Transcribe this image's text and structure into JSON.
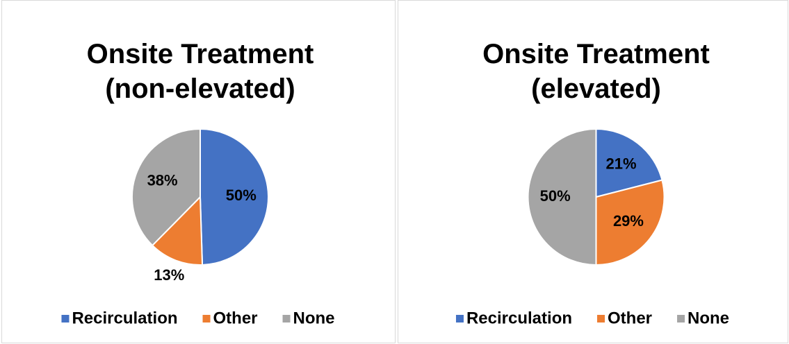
{
  "chart_data": [
    {
      "type": "pie",
      "title": "Onsite Treatment (non-elevated)",
      "categories": [
        "Recirculation",
        "Other",
        "None"
      ],
      "values": [
        50,
        13,
        38
      ],
      "value_labels": [
        "50%",
        "13%",
        "38%"
      ],
      "colors": [
        "#4472c4",
        "#ed7d31",
        "#a5a5a5"
      ],
      "legend": "bottom"
    },
    {
      "type": "pie",
      "title": "Onsite Treatment (elevated)",
      "categories": [
        "Recirculation",
        "Other",
        "None"
      ],
      "values": [
        21,
        29,
        50
      ],
      "value_labels": [
        "21%",
        "29%",
        "50%"
      ],
      "colors": [
        "#4472c4",
        "#ed7d31",
        "#a5a5a5"
      ],
      "legend": "bottom"
    }
  ]
}
